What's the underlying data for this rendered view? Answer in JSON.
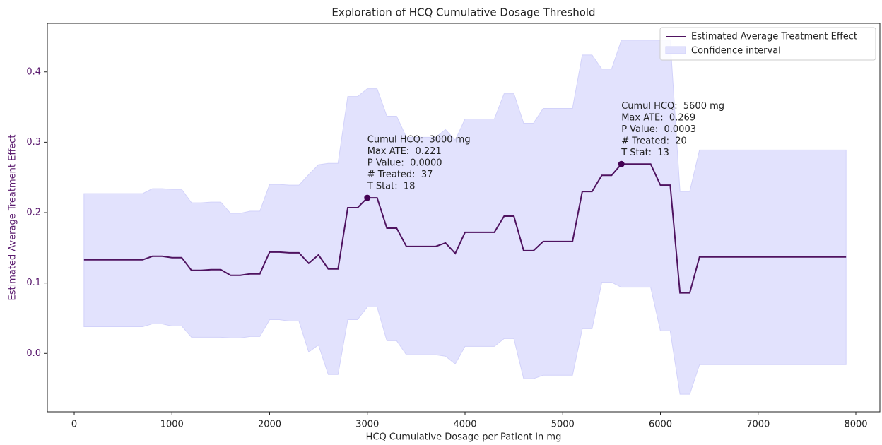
{
  "chart_data": {
    "type": "line",
    "title": "Exploration of HCQ Cumulative Dosage Threshold",
    "xlabel": "HCQ Cumulative Dosage per Patient in mg",
    "ylabel": "Estimated Average Treatment Effect",
    "xlim": [
      -275,
      8246
    ],
    "ylim": [
      -0.083,
      0.469
    ],
    "xticks": [
      0,
      1000,
      2000,
      3000,
      4000,
      5000,
      6000,
      7000,
      8000
    ],
    "yticks": [
      {
        "value": 0,
        "label": "0.0"
      },
      0.1,
      0.2,
      0.3,
      0.4
    ],
    "legend": "upper right",
    "x": [
      100,
      200,
      300,
      400,
      500,
      600,
      700,
      800,
      900,
      1000,
      1100,
      1200,
      1300,
      1400,
      1500,
      1600,
      1700,
      1800,
      1900,
      2000,
      2100,
      2200,
      2300,
      2400,
      2500,
      2600,
      2700,
      2800,
      2900,
      3000,
      3100,
      3200,
      3300,
      3400,
      3500,
      3600,
      3700,
      3800,
      3900,
      4000,
      4100,
      4200,
      4300,
      4400,
      4500,
      4600,
      4700,
      4800,
      4900,
      5000,
      5100,
      5200,
      5300,
      5400,
      5500,
      5600,
      5700,
      5800,
      5900,
      6000,
      6100,
      6200,
      6300,
      6400,
      6500,
      6600,
      6700,
      6800,
      6900,
      7000,
      7100,
      7200,
      7300,
      7400,
      7500,
      7600,
      7700,
      7800,
      7900
    ],
    "series": [
      {
        "name": "Estimated Average Treatment Effect",
        "color": "#4f1360",
        "values": [
          0.133,
          0.133,
          0.133,
          0.133,
          0.133,
          0.133,
          0.133,
          0.138,
          0.138,
          0.136,
          0.136,
          0.118,
          0.118,
          0.119,
          0.119,
          0.111,
          0.111,
          0.113,
          0.113,
          0.144,
          0.144,
          0.143,
          0.143,
          0.128,
          0.14,
          0.12,
          0.12,
          0.207,
          0.207,
          0.221,
          0.221,
          0.178,
          0.178,
          0.152,
          0.152,
          0.152,
          0.152,
          0.157,
          0.142,
          0.172,
          0.172,
          0.172,
          0.172,
          0.195,
          0.195,
          0.146,
          0.146,
          0.159,
          0.159,
          0.159,
          0.159,
          0.23,
          0.23,
          0.253,
          0.253,
          0.269,
          0.269,
          0.269,
          0.269,
          0.239,
          0.239,
          0.086,
          0.086,
          0.137,
          0.137,
          0.137,
          0.137,
          0.137,
          0.137,
          0.137,
          0.137,
          0.137,
          0.137,
          0.137,
          0.137,
          0.137,
          0.137,
          0.137,
          0.137
        ]
      }
    ],
    "band": {
      "name": "Confidence interval",
      "color": "#e2e2fd",
      "edge": "#d2d2fa",
      "upper": [
        0.227,
        0.227,
        0.227,
        0.227,
        0.227,
        0.227,
        0.227,
        0.234,
        0.234,
        0.233,
        0.233,
        0.214,
        0.214,
        0.215,
        0.215,
        0.199,
        0.199,
        0.202,
        0.202,
        0.24,
        0.24,
        0.239,
        0.239,
        0.254,
        0.268,
        0.27,
        0.27,
        0.365,
        0.365,
        0.376,
        0.376,
        0.337,
        0.337,
        0.307,
        0.307,
        0.307,
        0.307,
        0.318,
        0.303,
        0.333,
        0.333,
        0.333,
        0.333,
        0.369,
        0.369,
        0.327,
        0.327,
        0.348,
        0.348,
        0.348,
        0.348,
        0.424,
        0.424,
        0.404,
        0.404,
        0.445,
        0.445,
        0.445,
        0.445,
        0.445,
        0.445,
        0.23,
        0.23,
        0.289,
        0.289,
        0.289,
        0.289,
        0.289,
        0.289,
        0.289,
        0.289,
        0.289,
        0.289,
        0.289,
        0.289,
        0.289,
        0.289,
        0.289,
        0.289
      ],
      "lower": [
        0.038,
        0.038,
        0.038,
        0.038,
        0.038,
        0.038,
        0.038,
        0.042,
        0.042,
        0.039,
        0.039,
        0.023,
        0.023,
        0.023,
        0.023,
        0.022,
        0.022,
        0.024,
        0.024,
        0.048,
        0.048,
        0.046,
        0.046,
        0.002,
        0.012,
        -0.03,
        -0.03,
        0.048,
        0.048,
        0.066,
        0.066,
        0.018,
        0.018,
        -0.002,
        -0.002,
        -0.002,
        -0.002,
        -0.004,
        -0.015,
        0.01,
        0.01,
        0.01,
        0.01,
        0.021,
        0.021,
        -0.036,
        -0.036,
        -0.031,
        -0.031,
        -0.031,
        -0.031,
        0.035,
        0.035,
        0.101,
        0.101,
        0.094,
        0.094,
        0.094,
        0.094,
        0.032,
        0.032,
        -0.058,
        -0.058,
        -0.016,
        -0.016,
        -0.016,
        -0.016,
        -0.016,
        -0.016,
        -0.016,
        -0.016,
        -0.016,
        -0.016,
        -0.016,
        -0.016,
        -0.016,
        -0.016,
        -0.016,
        -0.016
      ]
    },
    "annotations": [
      {
        "x": 3000,
        "y": 0.221,
        "color": "#440154",
        "lines": [
          "Cumul HCQ:  3000 mg",
          "Max ATE:  0.221",
          "P Value:  0.0000",
          "# Treated:  37",
          "T Stat:  18"
        ]
      },
      {
        "x": 5600,
        "y": 0.269,
        "color": "#440154",
        "lines": [
          "Cumul HCQ:  5600 mg",
          "Max ATE:  0.269",
          "P Value:  0.0003",
          "# Treated:  20",
          "T Stat:  13"
        ]
      }
    ],
    "ylabel_color": "#5a1a6e"
  }
}
